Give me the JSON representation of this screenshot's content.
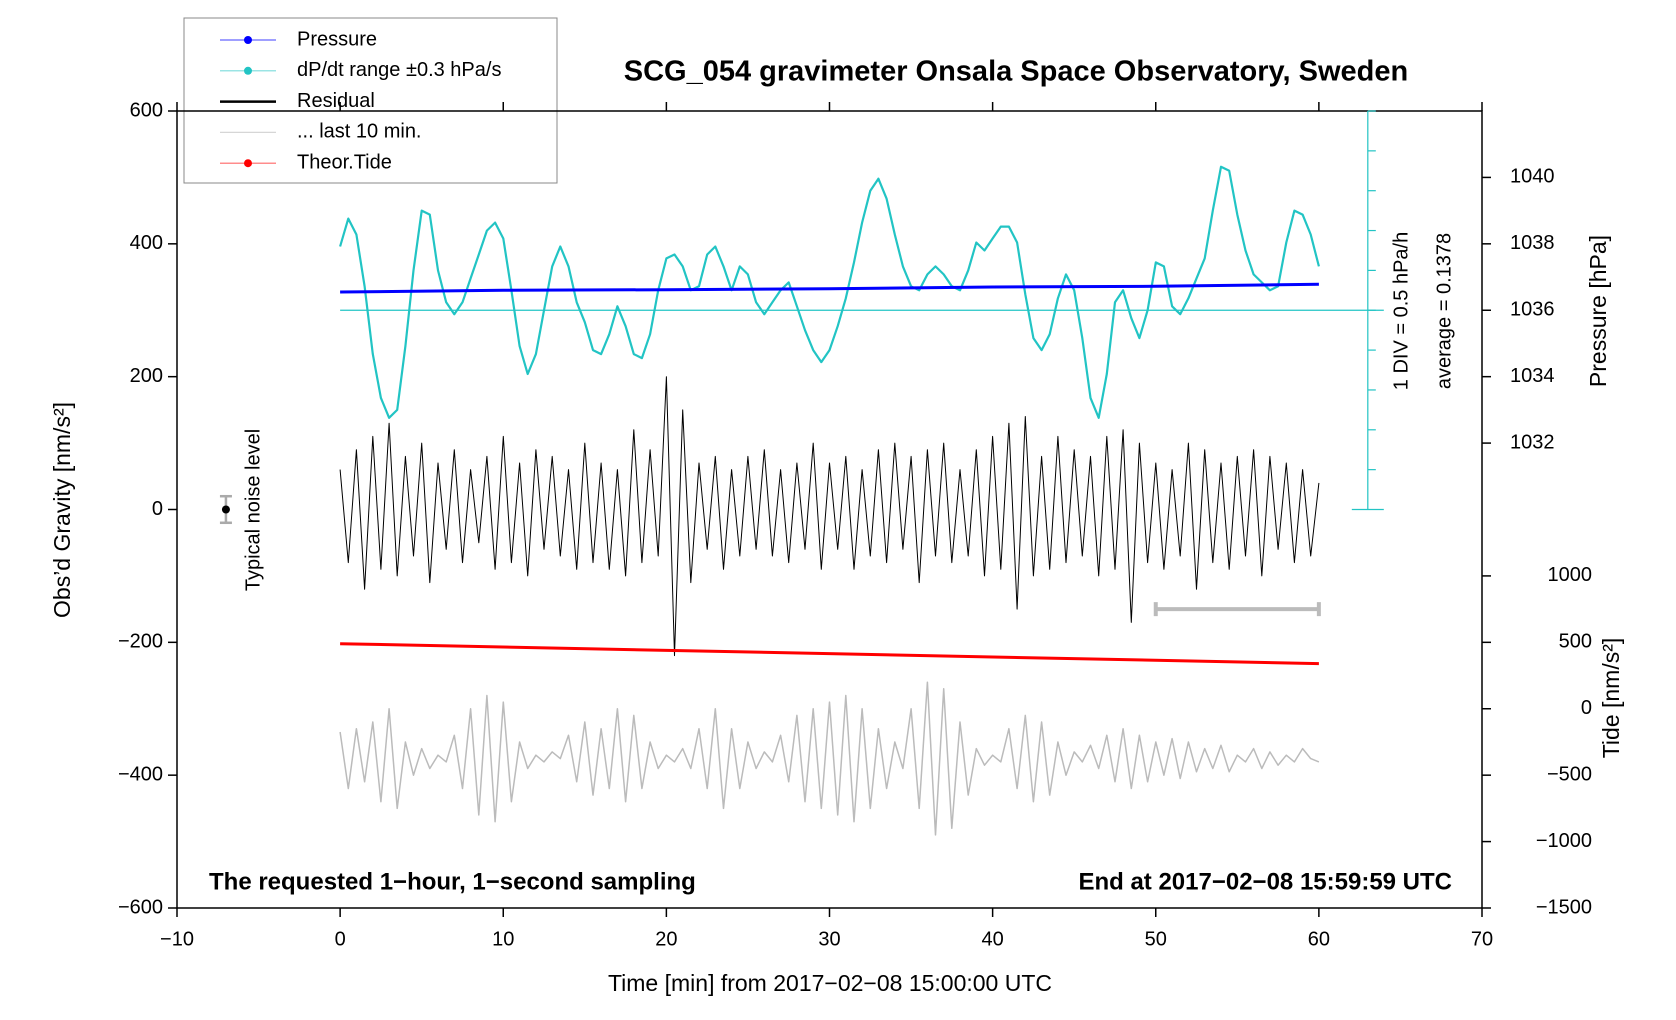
{
  "chart_data": {
    "type": "line",
    "title": "SCG_054 gravimeter Onsala Space Observatory, Sweden",
    "xlabel": "Time [min] from 2017−02−08 15:00:00 UTC",
    "ylabel": "Obs’d Gravity [nm/s²]",
    "y2label": "Pressure [hPa]",
    "tide_label": "Tide [nm/s²]",
    "dpdt_label": "1 DIV = 0.5 hPa/h",
    "average_label": "average = 0.1378",
    "noise_label": "Typical noise level",
    "annotation_left": "The requested 1−hour, 1−second sampling",
    "annotation_right": "End at 2017−02−08 15:59:59 UTC",
    "xlim": [
      -10,
      70
    ],
    "xticks": [
      {
        "value": -10,
        "label": "−10"
      },
      0,
      10,
      20,
      30,
      40,
      50,
      60,
      70
    ],
    "ylim": [
      -600,
      600
    ],
    "yticks": [
      600,
      400,
      200,
      0,
      {
        "value": -200,
        "label": "−200"
      },
      {
        "value": -400,
        "label": "−400"
      },
      {
        "value": -600,
        "label": "−600"
      }
    ],
    "y2lim": [
      1018,
      1042
    ],
    "y2ticks": [
      1032,
      1034,
      1036,
      1038,
      1040
    ],
    "tide_ylim": [
      -1500,
      4500
    ],
    "tide_yticks": [
      1000,
      500,
      0,
      {
        "value": -500,
        "label": "−500"
      },
      {
        "value": -1000,
        "label": "−1000"
      },
      {
        "value": -1500,
        "label": "−1500"
      }
    ],
    "dpdt_ylim": [
      -7.5,
      2.5
    ],
    "dpdt_yticks": [
      -2.5,
      -2,
      -1.5,
      -1,
      -0.5,
      0,
      0.5,
      1,
      1.5,
      2,
      2.5
    ],
    "noise": {
      "x": -7,
      "value": 0,
      "error": 20
    },
    "last10_bar": {
      "x": [
        50,
        60
      ],
      "y": -150
    },
    "x": [
      0,
      0.5,
      1,
      1.5,
      2,
      2.5,
      3,
      3.5,
      4,
      4.5,
      5,
      5.5,
      6,
      6.5,
      7,
      7.5,
      8,
      8.5,
      9,
      9.5,
      10,
      10.5,
      11,
      11.5,
      12,
      12.5,
      13,
      13.5,
      14,
      14.5,
      15,
      15.5,
      16,
      16.5,
      17,
      17.5,
      18,
      18.5,
      19,
      19.5,
      20,
      20.5,
      21,
      21.5,
      22,
      22.5,
      23,
      23.5,
      24,
      24.5,
      25,
      25.5,
      26,
      26.5,
      27,
      27.5,
      28,
      28.5,
      29,
      29.5,
      30,
      30.5,
      31,
      31.5,
      32,
      32.5,
      33,
      33.5,
      34,
      34.5,
      35,
      35.5,
      36,
      36.5,
      37,
      37.5,
      38,
      38.5,
      39,
      39.5,
      40,
      40.5,
      41,
      41.5,
      42,
      42.5,
      43,
      43.5,
      44,
      44.5,
      45,
      45.5,
      46,
      46.5,
      47,
      47.5,
      48,
      48.5,
      49,
      49.5,
      50,
      50.5,
      51,
      51.5,
      52,
      52.5,
      53,
      53.5,
      54,
      54.5,
      55,
      55.5,
      56,
      56.5,
      57,
      57.5,
      58,
      58.5,
      59,
      59.5,
      60
    ],
    "series": [
      {
        "name": "Pressure",
        "color": "#0000ff",
        "axis": "y2",
        "marker": true,
        "x": [
          0,
          10,
          20,
          30,
          40,
          50,
          60
        ],
        "values": [
          1036.55,
          1036.6,
          1036.62,
          1036.65,
          1036.7,
          1036.72,
          1036.78
        ]
      },
      {
        "name": "dP/dt range ±0.3 hPa/s",
        "color": "#22c4c4",
        "axis": "dpdt",
        "marker": true,
        "values": [
          0.8,
          1.15,
          0.95,
          0.3,
          -0.55,
          -1.1,
          -1.35,
          -1.25,
          -0.45,
          0.5,
          1.25,
          1.2,
          0.5,
          0.1,
          -0.05,
          0.1,
          0.4,
          0.7,
          1.0,
          1.1,
          0.9,
          0.25,
          -0.45,
          -0.8,
          -0.55,
          0,
          0.55,
          0.8,
          0.55,
          0.1,
          -0.15,
          -0.5,
          -0.55,
          -0.3,
          0.05,
          -0.2,
          -0.55,
          -0.6,
          -0.3,
          0.25,
          0.65,
          0.7,
          0.55,
          0.25,
          0.3,
          0.7,
          0.8,
          0.55,
          0.25,
          0.55,
          0.45,
          0.1,
          -0.05,
          0.1,
          0.25,
          0.35,
          0.05,
          -0.25,
          -0.5,
          -0.65,
          -0.5,
          -0.2,
          0.15,
          0.6,
          1.1,
          1.5,
          1.65,
          1.4,
          0.95,
          0.55,
          0.3,
          0.25,
          0.45,
          0.55,
          0.45,
          0.3,
          0.25,
          0.5,
          0.85,
          0.75,
          0.9,
          1.05,
          1.05,
          0.85,
          0.2,
          -0.35,
          -0.5,
          -0.3,
          0.15,
          0.45,
          0.25,
          -0.35,
          -1.1,
          -1.35,
          -0.8,
          0.1,
          0.25,
          -0.1,
          -0.35,
          0.0,
          0.6,
          0.55,
          0.05,
          -0.05,
          0.15,
          0.4,
          0.65,
          1.25,
          1.8,
          1.75,
          1.2,
          0.75,
          0.45,
          0.35,
          0.25,
          0.3,
          0.85,
          1.25,
          1.2,
          0.95,
          0.55
        ]
      },
      {
        "name": "Residual",
        "color": "#000000",
        "axis": "y",
        "values": [
          60,
          -80,
          90,
          -120,
          110,
          -90,
          130,
          -100,
          80,
          -70,
          100,
          -110,
          70,
          -60,
          90,
          -80,
          60,
          -50,
          80,
          -90,
          110,
          -80,
          70,
          -100,
          90,
          -60,
          80,
          -70,
          60,
          -90,
          100,
          -80,
          70,
          -90,
          60,
          -100,
          120,
          -80,
          90,
          -70,
          200,
          -220,
          150,
          -110,
          70,
          -60,
          80,
          -90,
          60,
          -70,
          80,
          -60,
          90,
          -70,
          60,
          -80,
          70,
          -60,
          100,
          -90,
          70,
          -60,
          80,
          -90,
          60,
          -70,
          90,
          -80,
          100,
          -60,
          80,
          -110,
          90,
          -70,
          100,
          -80,
          60,
          -70,
          90,
          -100,
          110,
          -90,
          130,
          -150,
          140,
          -100,
          80,
          -90,
          110,
          -80,
          90,
          -70,
          80,
          -100,
          110,
          -90,
          120,
          -170,
          100,
          -80,
          70,
          -90,
          60,
          -70,
          100,
          -120,
          90,
          -80,
          70,
          -90,
          80,
          -70,
          90,
          -100,
          80,
          -60,
          70,
          -80,
          60,
          -70,
          40
        ]
      },
      {
        "name": "... last 10 min.",
        "color": "#bbbbbb",
        "axis": "y",
        "values": [
          -335,
          -420,
          -330,
          -410,
          -320,
          -440,
          -300,
          -450,
          -350,
          -400,
          -360,
          -390,
          -370,
          -380,
          -340,
          -420,
          -300,
          -460,
          -280,
          -470,
          -290,
          -440,
          -350,
          -390,
          -370,
          -380,
          -365,
          -375,
          -340,
          -410,
          -320,
          -430,
          -330,
          -420,
          -300,
          -440,
          -310,
          -420,
          -350,
          -390,
          -370,
          -380,
          -360,
          -390,
          -330,
          -420,
          -300,
          -450,
          -330,
          -420,
          -350,
          -390,
          -365,
          -380,
          -340,
          -410,
          -310,
          -440,
          -300,
          -450,
          -290,
          -460,
          -280,
          -470,
          -300,
          -450,
          -330,
          -420,
          -350,
          -390,
          -300,
          -450,
          -260,
          -490,
          -270,
          -480,
          -320,
          -430,
          -360,
          -385,
          -370,
          -380,
          -330,
          -420,
          -310,
          -440,
          -320,
          -430,
          -350,
          -400,
          -365,
          -380,
          -355,
          -390,
          -340,
          -410,
          -330,
          -420,
          -340,
          -410,
          -350,
          -400,
          -345,
          -405,
          -350,
          -395,
          -360,
          -390,
          -355,
          -395,
          -370,
          -380,
          -360,
          -390,
          -365,
          -385,
          -370,
          -380,
          -360,
          -375,
          -380
        ]
      },
      {
        "name": "Theor.Tide",
        "color": "#ff0000",
        "axis": "tide",
        "marker": true,
        "x": [
          0,
          60
        ],
        "values": [
          490,
          340
        ]
      }
    ]
  }
}
